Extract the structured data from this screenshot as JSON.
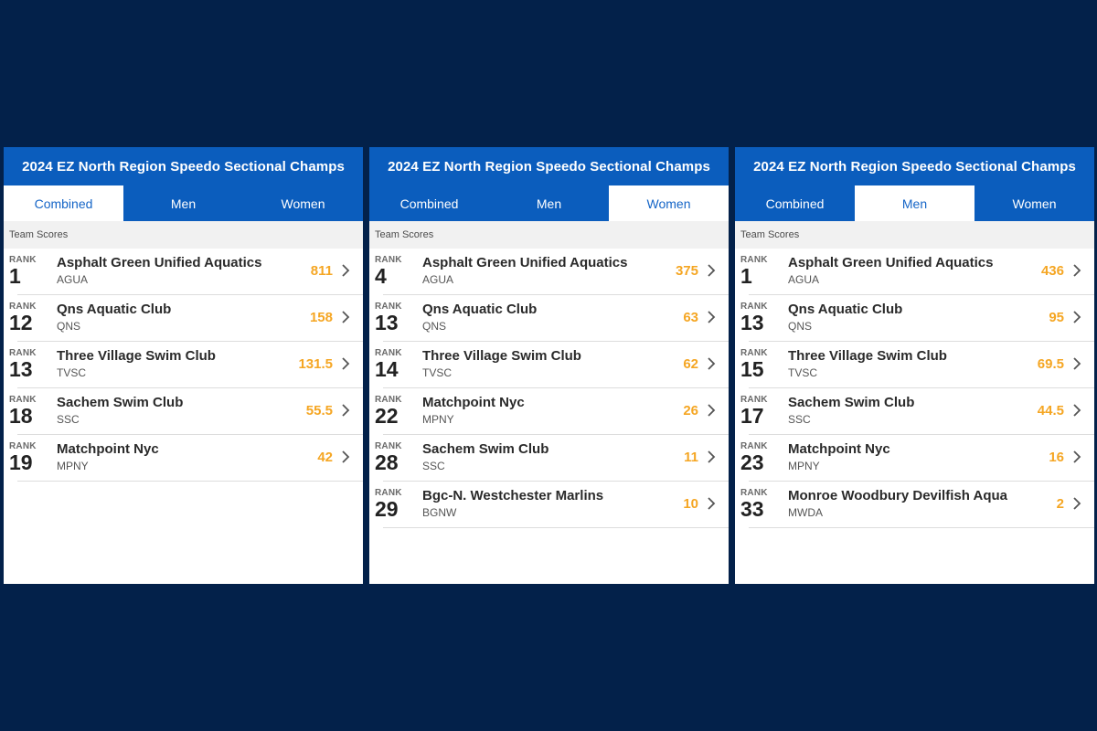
{
  "panels": [
    {
      "title": "2024 EZ North Region Speedo Sectional Champs",
      "tabs": [
        "Combined",
        "Men",
        "Women"
      ],
      "active_tab": 0,
      "section_label": "Team Scores",
      "rank_label": "RANK",
      "rows": [
        {
          "rank": "1",
          "name": "Asphalt Green Unified Aquatics",
          "code": "AGUA",
          "score": "811"
        },
        {
          "rank": "12",
          "name": "Qns Aquatic Club",
          "code": "QNS",
          "score": "158"
        },
        {
          "rank": "13",
          "name": "Three Village Swim Club",
          "code": "TVSC",
          "score": "131.5"
        },
        {
          "rank": "18",
          "name": "Sachem Swim Club",
          "code": "SSC",
          "score": "55.5"
        },
        {
          "rank": "19",
          "name": "Matchpoint Nyc",
          "code": "MPNY",
          "score": "42"
        }
      ]
    },
    {
      "title": "2024 EZ North Region Speedo Sectional Champs",
      "tabs": [
        "Combined",
        "Men",
        "Women"
      ],
      "active_tab": 2,
      "section_label": "Team Scores",
      "rank_label": "RANK",
      "rows": [
        {
          "rank": "4",
          "name": "Asphalt Green Unified Aquatics",
          "code": "AGUA",
          "score": "375"
        },
        {
          "rank": "13",
          "name": "Qns Aquatic Club",
          "code": "QNS",
          "score": "63"
        },
        {
          "rank": "14",
          "name": "Three Village Swim Club",
          "code": "TVSC",
          "score": "62"
        },
        {
          "rank": "22",
          "name": "Matchpoint Nyc",
          "code": "MPNY",
          "score": "26"
        },
        {
          "rank": "28",
          "name": "Sachem Swim Club",
          "code": "SSC",
          "score": "11"
        },
        {
          "rank": "29",
          "name": "Bgc-N. Westchester Marlins",
          "code": "BGNW",
          "score": "10"
        }
      ]
    },
    {
      "title": "2024 EZ North Region Speedo Sectional Champs",
      "tabs": [
        "Combined",
        "Men",
        "Women"
      ],
      "active_tab": 1,
      "section_label": "Team Scores",
      "rank_label": "RANK",
      "rows": [
        {
          "rank": "1",
          "name": "Asphalt Green Unified Aquatics",
          "code": "AGUA",
          "score": "436"
        },
        {
          "rank": "13",
          "name": "Qns Aquatic Club",
          "code": "QNS",
          "score": "95"
        },
        {
          "rank": "15",
          "name": "Three Village Swim Club",
          "code": "TVSC",
          "score": "69.5"
        },
        {
          "rank": "17",
          "name": "Sachem Swim Club",
          "code": "SSC",
          "score": "44.5"
        },
        {
          "rank": "23",
          "name": "Matchpoint Nyc",
          "code": "MPNY",
          "score": "16"
        },
        {
          "rank": "33",
          "name": "Monroe Woodbury Devilfish Aqua",
          "code": "MWDA",
          "score": "2"
        }
      ]
    }
  ],
  "icons": {
    "row_arrow": "chevron-right-icon"
  },
  "colors": {
    "background": "#03214a",
    "header": "#0b5dbd",
    "score": "#f5a623",
    "active_tab_text": "#1565c7"
  }
}
